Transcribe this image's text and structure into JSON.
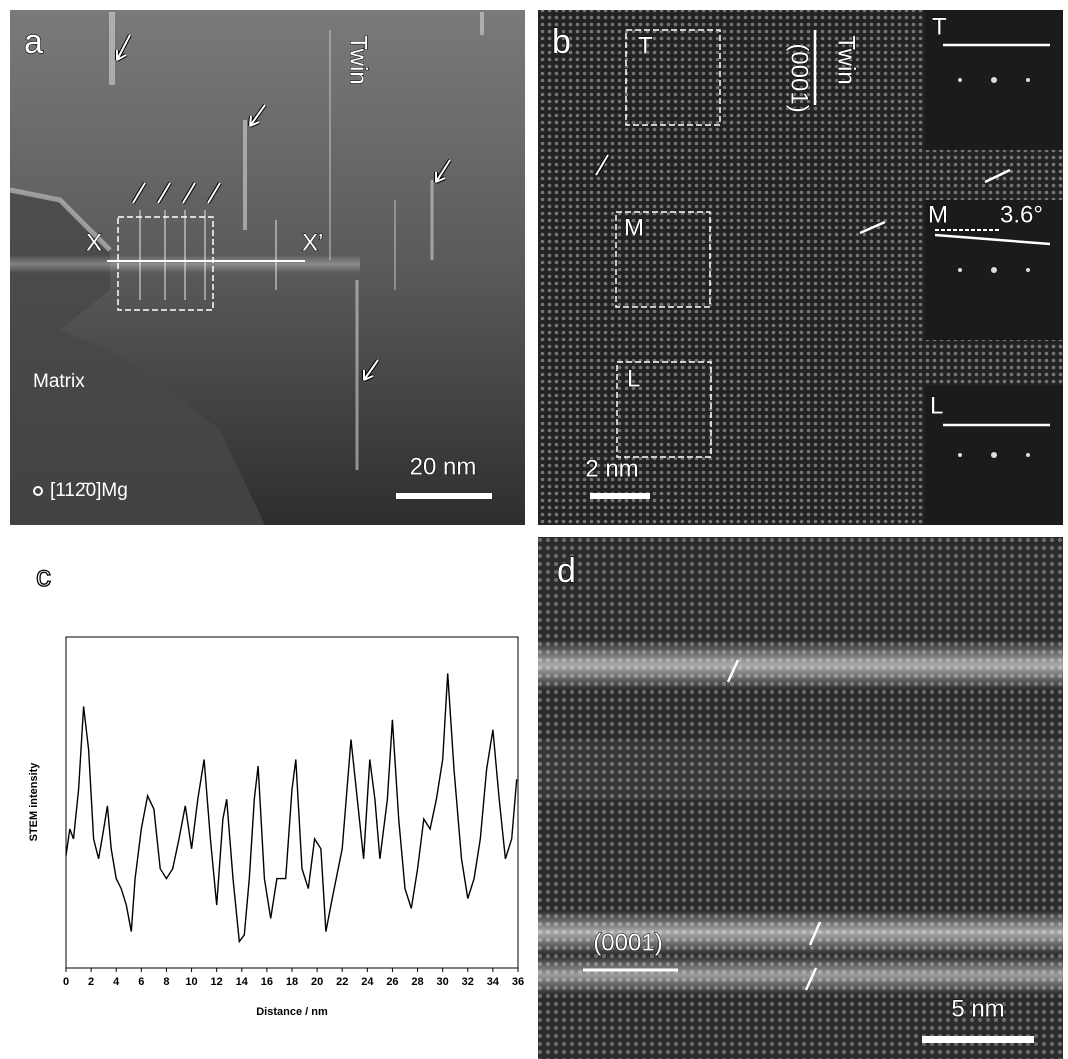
{
  "panel_a": {
    "label": "a",
    "twin": "Twin",
    "x_left": "X",
    "x_right": "X’",
    "matrix": "Matrix",
    "zone_axis": "[112̄0]Mg",
    "scale_bar": "20 nm"
  },
  "panel_b": {
    "label": "b",
    "box_t": "T",
    "box_m": "M",
    "box_l": "L",
    "twin": "Twin",
    "plane": "(0001)",
    "fft_t": "T",
    "fft_m": "M",
    "angle": "3.6°",
    "fft_l": "L",
    "scale_bar": "2 nm"
  },
  "chart_data": {
    "type": "line",
    "panel_label": "c",
    "ylabel": "STEM intensity",
    "xlabel": "Distance / nm",
    "color": "#000000",
    "x": [
      0,
      0.3,
      0.6,
      1.0,
      1.4,
      1.8,
      2.2,
      2.6,
      3.0,
      3.3,
      3.6,
      4.0,
      4.4,
      4.8,
      5.2,
      5.5,
      6.0,
      6.5,
      7.0,
      7.5,
      8.0,
      8.5,
      9.0,
      9.5,
      10.0,
      10.5,
      11.0,
      11.5,
      12.0,
      12.5,
      12.8,
      13.3,
      13.8,
      14.2,
      14.6,
      15.0,
      15.3,
      15.8,
      16.3,
      16.8,
      17.5,
      18.0,
      18.3,
      18.8,
      19.3,
      19.8,
      20.3,
      20.7,
      21.2,
      22.0,
      22.7,
      23.2,
      23.7,
      24.2,
      24.6,
      25.0,
      25.6,
      26.0,
      26.5,
      27.0,
      27.5,
      28.0,
      28.5,
      29.0,
      29.5,
      30.0,
      30.4,
      30.9,
      31.5,
      32.0,
      32.5,
      33.0,
      33.5,
      34.0,
      34.5,
      35.0,
      35.5,
      35.9
    ],
    "values": [
      34,
      42,
      39,
      54,
      79,
      66,
      39,
      33,
      42,
      49,
      36,
      27,
      24,
      19,
      11,
      27,
      42,
      52,
      48,
      30,
      27,
      30,
      39,
      49,
      36,
      51,
      63,
      39,
      19,
      45,
      51,
      27,
      8,
      10,
      27,
      51,
      61,
      27,
      15,
      27,
      27,
      54,
      63,
      30,
      24,
      39,
      36,
      11,
      21,
      36,
      69,
      51,
      33,
      63,
      51,
      33,
      51,
      75,
      45,
      24,
      18,
      30,
      45,
      42,
      51,
      63,
      89,
      60,
      33,
      21,
      27,
      39,
      60,
      72,
      51,
      33,
      39,
      57
    ],
    "xlim": [
      0,
      36
    ],
    "xticks": [
      0,
      2,
      4,
      6,
      8,
      10,
      12,
      14,
      16,
      18,
      20,
      22,
      24,
      26,
      28,
      30,
      32,
      34,
      36
    ],
    "ylim": [
      0,
      100
    ]
  },
  "panel_d": {
    "label": "d",
    "plane": "(0001)",
    "scale_bar": "5 nm"
  }
}
